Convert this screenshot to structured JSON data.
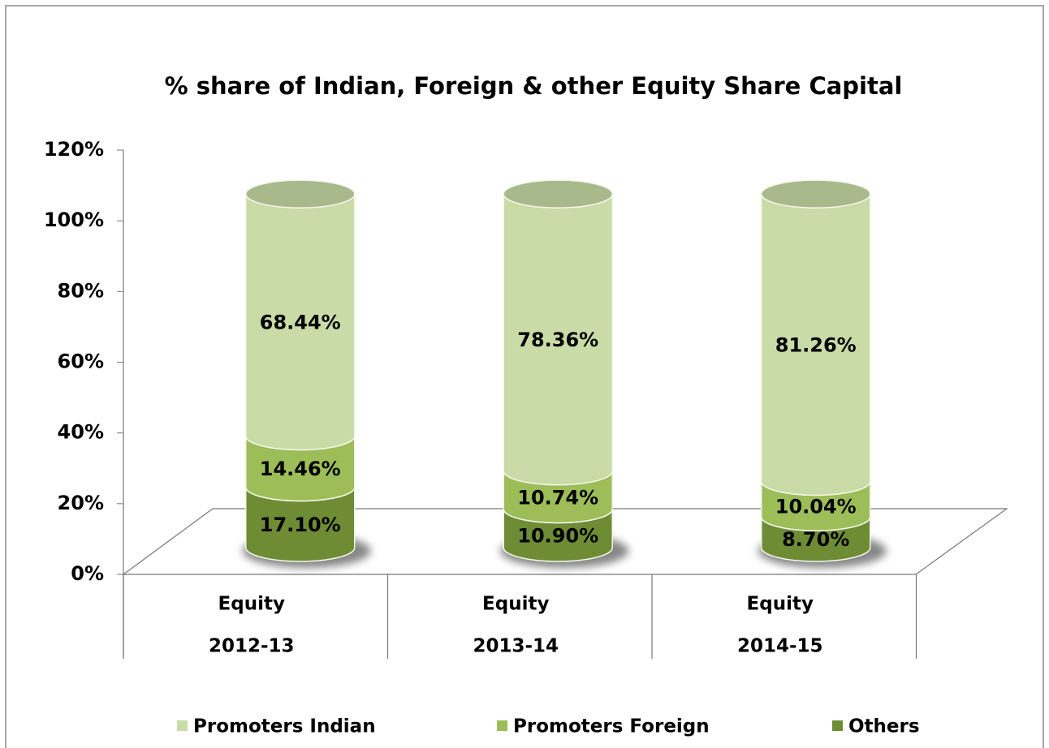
{
  "chart_data": {
    "type": "cylinder-stacked",
    "title": "% share of Indian, Foreign & other Equity Share Capital",
    "categories": [
      [
        "Equity",
        "2012-13"
      ],
      [
        "Equity",
        "2013-14"
      ],
      [
        "Equity",
        "2014-15"
      ]
    ],
    "series": [
      {
        "name": "Promoters Indian",
        "color": "#c9dba6",
        "values": [
          68.44,
          78.36,
          81.26
        ],
        "value_labels": [
          "68.44%",
          "78.36%",
          "81.26%"
        ]
      },
      {
        "name": "Promoters Foreign",
        "color": "#9dbd58",
        "values": [
          14.46,
          10.74,
          10.04
        ],
        "value_labels": [
          "14.46%",
          "10.74%",
          "10.04%"
        ]
      },
      {
        "name": "Others",
        "color": "#6e8c34",
        "values": [
          17.1,
          10.9,
          8.7
        ],
        "value_labels": [
          "17.10%",
          "10.90%",
          "8.70%"
        ]
      }
    ],
    "ylim": [
      0,
      120
    ],
    "yticks": [
      {
        "value": 0,
        "label": "0%"
      },
      {
        "value": 20,
        "label": "20%"
      },
      {
        "value": 40,
        "label": "40%"
      },
      {
        "value": 60,
        "label": "60%"
      },
      {
        "value": 80,
        "label": "80%"
      },
      {
        "value": 100,
        "label": "100%"
      },
      {
        "value": 120,
        "label": "120%"
      }
    ],
    "stack_from": "last"
  }
}
